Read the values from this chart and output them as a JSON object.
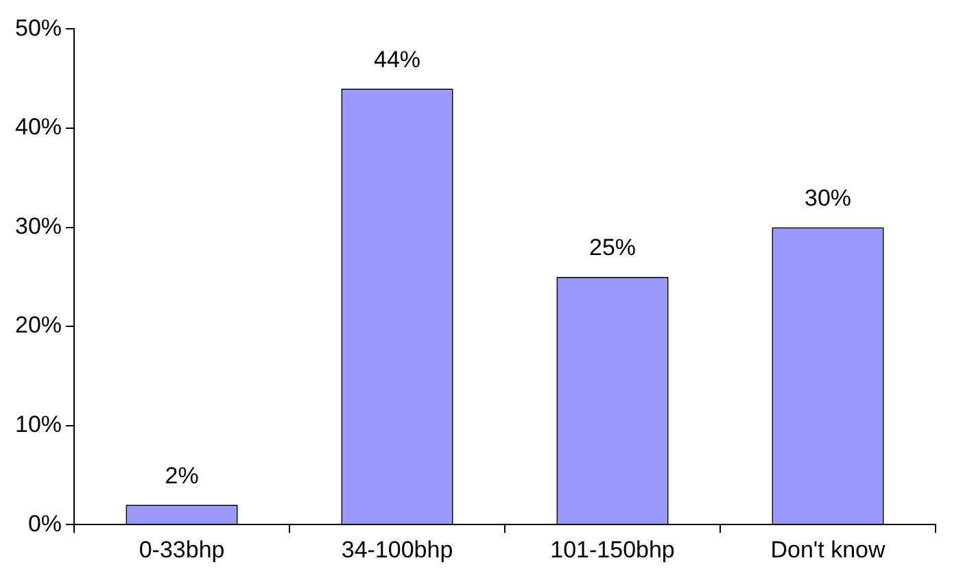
{
  "chart_data": {
    "type": "bar",
    "categories": [
      "0-33bhp",
      "34-100bhp",
      "101-150bhp",
      "Don't know"
    ],
    "values": [
      2,
      44,
      25,
      30
    ],
    "value_labels": [
      "2%",
      "44%",
      "25%",
      "30%"
    ],
    "color": "#9999ff",
    "ylim": [
      0,
      50
    ],
    "yticks": [
      {
        "value": 0,
        "label": "0%"
      },
      {
        "value": 10,
        "label": "10%"
      },
      {
        "value": 20,
        "label": "20%"
      },
      {
        "value": 30,
        "label": "30%"
      },
      {
        "value": 40,
        "label": "40%"
      },
      {
        "value": 50,
        "label": "50%"
      }
    ],
    "grid": false,
    "legend": false
  }
}
